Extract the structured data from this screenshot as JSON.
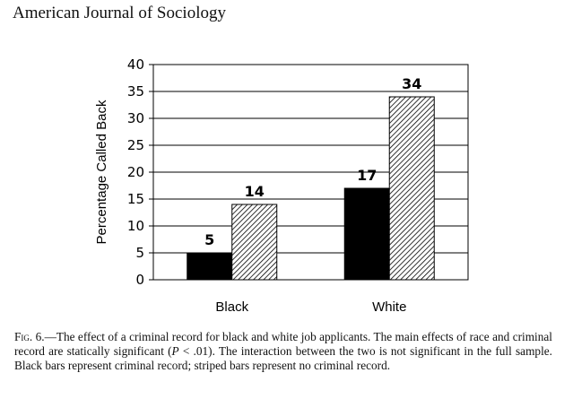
{
  "header": {
    "journal": "American Journal of Sociology"
  },
  "caption": {
    "fig": "Fig. 6.",
    "text_a": "—The effect of a criminal record for black and white job applicants. The main effects of race and criminal record are statically significant (",
    "p_symbol": "P",
    "text_b": " < .01). The interaction between the two is not significant in the full sample. Black bars represent criminal record; striped bars represent no criminal record."
  },
  "chart_data": {
    "type": "bar",
    "categories": [
      "Black",
      "White"
    ],
    "series": [
      {
        "values": [
          5,
          17
        ],
        "color": "#000000",
        "pattern": "solid"
      },
      {
        "values": [
          14,
          34
        ],
        "color": "#ffffff",
        "pattern": "diagonal-stripes"
      }
    ],
    "data_labels": [
      [
        "5",
        "17"
      ],
      [
        "14",
        "34"
      ]
    ],
    "ylabel": "Percentage Called Back",
    "xlabel": "",
    "ylim": [
      0,
      40
    ],
    "yticks": [
      0,
      5,
      10,
      15,
      20,
      25,
      30,
      35,
      40
    ],
    "grid": "horizontal"
  }
}
